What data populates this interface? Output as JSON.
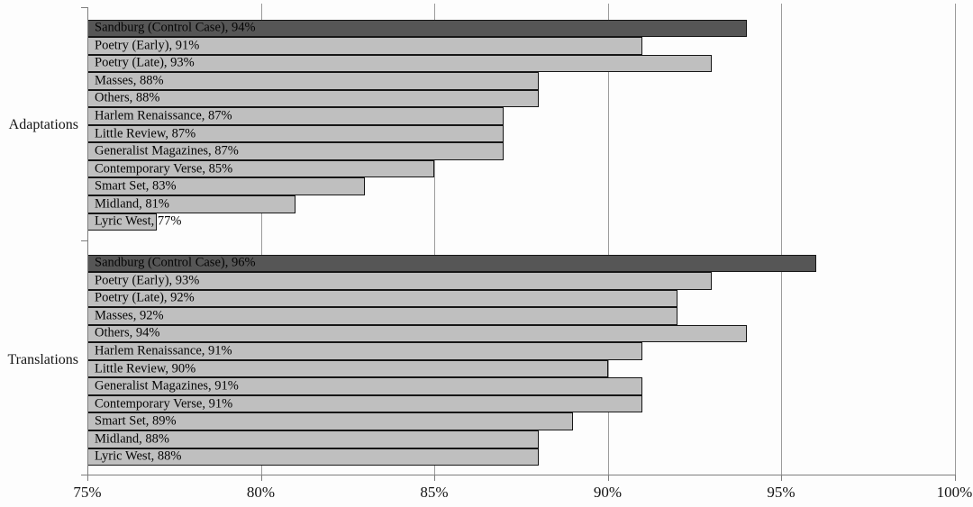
{
  "chart_data": {
    "type": "bar",
    "orientation": "horizontal",
    "title": "",
    "xlabel": "",
    "ylabel": "",
    "xlim": [
      75,
      100
    ],
    "x_tick_values": [
      75,
      80,
      85,
      90,
      95,
      100
    ],
    "x_tick_labels": [
      "75%",
      "80%",
      "85%",
      "90%",
      "95%",
      "100%"
    ],
    "grid": true,
    "legend": "none",
    "categories": [
      "Adaptations",
      "Translations"
    ],
    "groups": [
      {
        "label": "Adaptations",
        "bars": [
          {
            "name": "Sandburg (Control Case)",
            "value": 94,
            "display": "Sandburg (Control Case), 94%",
            "control": true
          },
          {
            "name": "Poetry (Early)",
            "value": 91,
            "display": "Poetry (Early), 91%",
            "control": false
          },
          {
            "name": "Poetry (Late)",
            "value": 93,
            "display": "Poetry (Late), 93%",
            "control": false
          },
          {
            "name": "Masses",
            "value": 88,
            "display": "Masses, 88%",
            "control": false
          },
          {
            "name": "Others",
            "value": 88,
            "display": "Others, 88%",
            "control": false
          },
          {
            "name": "Harlem Renaissance",
            "value": 87,
            "display": "Harlem Renaissance, 87%",
            "control": false
          },
          {
            "name": "Little Review",
            "value": 87,
            "display": "Little Review, 87%",
            "control": false
          },
          {
            "name": "Generalist Magazines",
            "value": 87,
            "display": "Generalist Magazines, 87%",
            "control": false
          },
          {
            "name": "Contemporary Verse",
            "value": 85,
            "display": "Contemporary Verse, 85%",
            "control": false
          },
          {
            "name": "Smart Set",
            "value": 83,
            "display": "Smart Set, 83%",
            "control": false
          },
          {
            "name": "Midland",
            "value": 81,
            "display": "Midland, 81%",
            "control": false
          },
          {
            "name": "Lyric West",
            "value": 77,
            "display": "Lyric West, 77%",
            "control": false
          }
        ]
      },
      {
        "label": "Translations",
        "bars": [
          {
            "name": "Sandburg (Control Case)",
            "value": 96,
            "display": "Sandburg (Control Case), 96%",
            "control": true
          },
          {
            "name": "Poetry (Early)",
            "value": 93,
            "display": "Poetry (Early), 93%",
            "control": false
          },
          {
            "name": "Poetry (Late)",
            "value": 92,
            "display": "Poetry (Late), 92%",
            "control": false
          },
          {
            "name": "Masses",
            "value": 92,
            "display": "Masses, 92%",
            "control": false
          },
          {
            "name": "Others",
            "value": 94,
            "display": "Others, 94%",
            "control": false
          },
          {
            "name": "Harlem Renaissance",
            "value": 91,
            "display": "Harlem Renaissance, 91%",
            "control": false
          },
          {
            "name": "Little Review",
            "value": 90,
            "display": "Little Review, 90%",
            "control": false
          },
          {
            "name": "Generalist Magazines",
            "value": 91,
            "display": "Generalist Magazines, 91%",
            "control": false
          },
          {
            "name": "Contemporary Verse",
            "value": 91,
            "display": "Contemporary Verse, 91%",
            "control": false
          },
          {
            "name": "Smart Set",
            "value": 89,
            "display": "Smart Set, 89%",
            "control": false
          },
          {
            "name": "Midland",
            "value": 88,
            "display": "Midland, 88%",
            "control": false
          },
          {
            "name": "Lyric West",
            "value": 88,
            "display": "Lyric West, 88%",
            "control": false
          }
        ]
      }
    ],
    "colors": {
      "control_bar": "#565656",
      "bar": "#bfbfbf",
      "bar_border": "#161616",
      "gridline": "#9b9b9b",
      "axis": "#7d7d7d",
      "text": "#0a0a0a",
      "background": "#fdfdfd"
    }
  }
}
